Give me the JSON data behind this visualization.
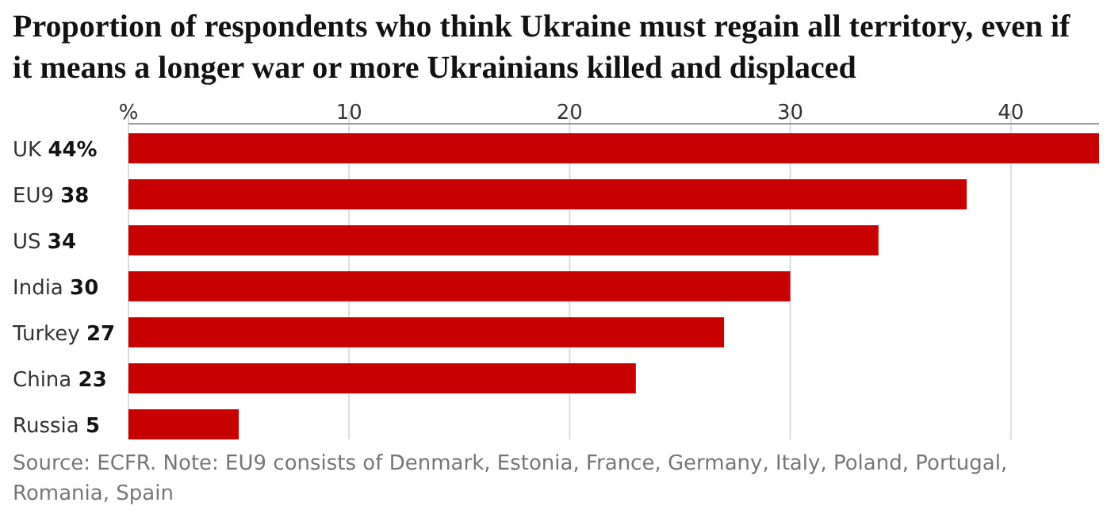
{
  "chart_data": {
    "type": "bar",
    "orientation": "horizontal",
    "title": "Proportion of respondents who think Ukraine must regain all territory, even if it means a longer war or more Ukrainians killed and displaced",
    "categories": [
      "UK",
      "EU9",
      "US",
      "India",
      "Turkey",
      "China",
      "Russia"
    ],
    "values": [
      44,
      38,
      34,
      30,
      27,
      23,
      5
    ],
    "value_labels": [
      "44%",
      "38",
      "34",
      "30",
      "27",
      "23",
      "5"
    ],
    "color": "#c70000",
    "xlim": [
      0,
      44
    ],
    "xticks": [
      {
        "value": 0,
        "label": "%"
      },
      10,
      20,
      30,
      40
    ],
    "grid": "x",
    "annotations": [
      "Source: ECFR. Note: EU9 consists of Denmark, Estonia, France, Germany, Italy, Poland, Portugal, Romania, Spain"
    ]
  }
}
